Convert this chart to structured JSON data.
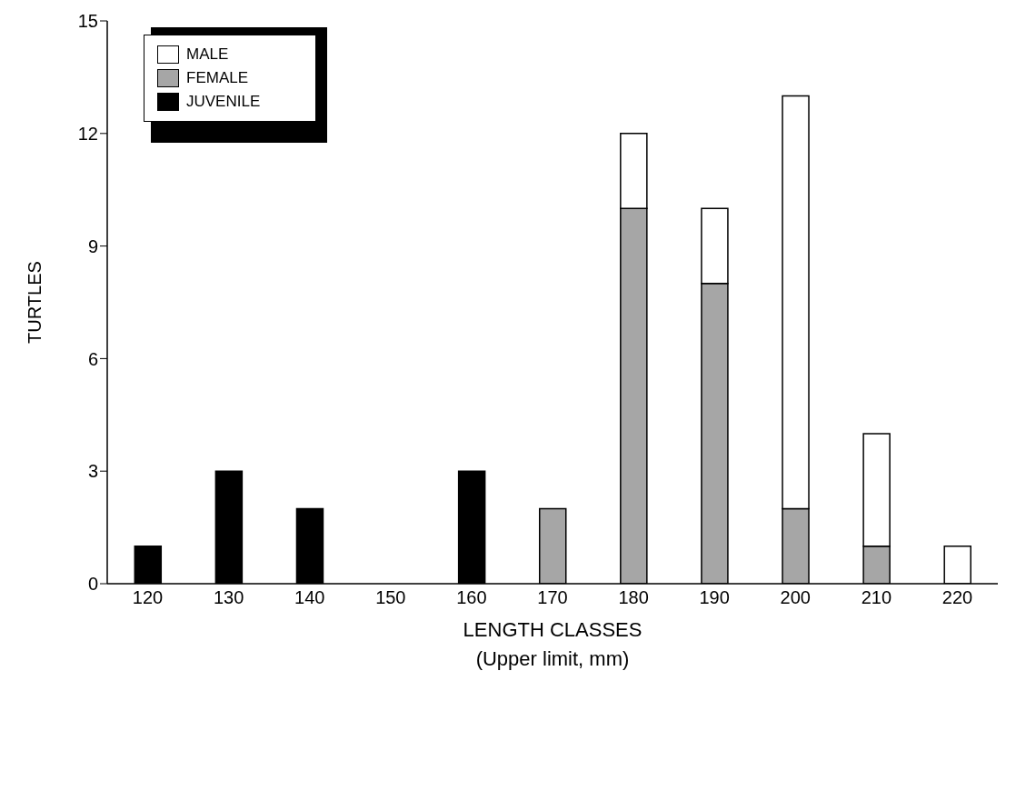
{
  "chart_data": {
    "type": "bar",
    "stacked": true,
    "xlabel": "LENGTH CLASSES\n(Upper limit, mm)",
    "ylabel": "TURTLES",
    "categories": [
      "120",
      "130",
      "140",
      "150",
      "160",
      "170",
      "180",
      "190",
      "200",
      "210",
      "220"
    ],
    "series": [
      {
        "name": "JUVENILE",
        "color": "#000000",
        "values": [
          1,
          3,
          2,
          null,
          3,
          null,
          null,
          null,
          null,
          null,
          null
        ]
      },
      {
        "name": "FEMALE",
        "color": "#a6a6a6",
        "values": [
          null,
          null,
          null,
          null,
          null,
          2,
          10,
          8,
          2,
          1,
          null
        ]
      },
      {
        "name": "MALE",
        "color": "#ffffff",
        "values": [
          null,
          null,
          null,
          null,
          null,
          null,
          2,
          2,
          11,
          3,
          1
        ]
      }
    ],
    "ylim": [
      0,
      15
    ],
    "yticks": [
      0,
      3,
      6,
      9,
      12,
      15
    ],
    "grid": false,
    "legend": "top left"
  }
}
